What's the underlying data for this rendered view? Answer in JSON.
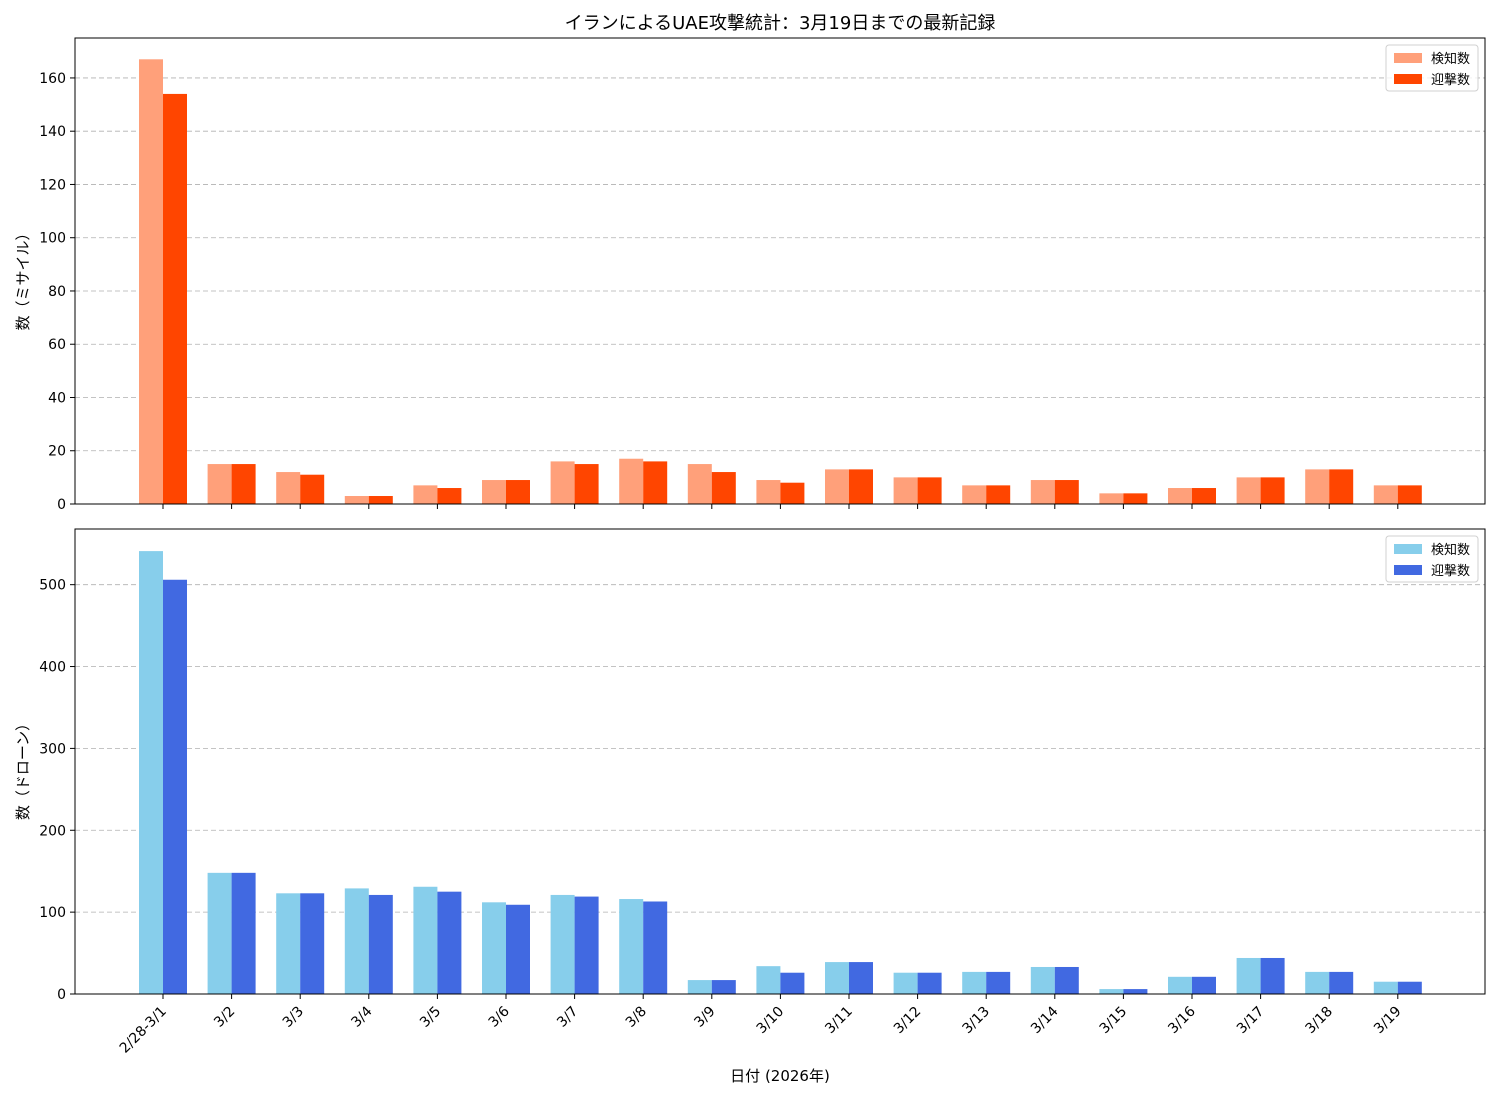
{
  "chart_data": [
    {
      "type": "bar",
      "title": "イランによるUAE攻撃統計：3月19日までの最新記録",
      "xlabel": "",
      "ylabel": "数（ミサイル）",
      "categories": [
        "2/28-3/1",
        "3/2",
        "3/3",
        "3/4",
        "3/5",
        "3/6",
        "3/7",
        "3/8",
        "3/9",
        "3/10",
        "3/11",
        "3/12",
        "3/13",
        "3/14",
        "3/15",
        "3/16",
        "3/17",
        "3/18",
        "3/19"
      ],
      "ylim": [
        0,
        175
      ],
      "yticks": [
        0,
        20,
        40,
        60,
        80,
        100,
        120,
        140,
        160
      ],
      "grid": "y-dashed",
      "legend_position": "top-right",
      "series": [
        {
          "name": "検知数",
          "color": "#FFA07A",
          "values": [
            167,
            15,
            12,
            3,
            7,
            9,
            16,
            17,
            15,
            9,
            13,
            10,
            7,
            9,
            4,
            6,
            10,
            13,
            7
          ]
        },
        {
          "name": "迎撃数",
          "color": "#FF4500",
          "values": [
            154,
            15,
            11,
            3,
            6,
            9,
            15,
            16,
            12,
            8,
            13,
            10,
            7,
            9,
            4,
            6,
            10,
            13,
            7
          ]
        }
      ]
    },
    {
      "type": "bar",
      "title": "",
      "xlabel": "日付 (2026年)",
      "ylabel": "数（ドローン）",
      "categories": [
        "2/28-3/1",
        "3/2",
        "3/3",
        "3/4",
        "3/5",
        "3/6",
        "3/7",
        "3/8",
        "3/9",
        "3/10",
        "3/11",
        "3/12",
        "3/13",
        "3/14",
        "3/15",
        "3/16",
        "3/17",
        "3/18",
        "3/19"
      ],
      "ylim": [
        0,
        568
      ],
      "yticks": [
        0,
        100,
        200,
        300,
        400,
        500
      ],
      "grid": "y-dashed",
      "legend_position": "top-right",
      "series": [
        {
          "name": "検知数",
          "color": "#87CEEB",
          "values": [
            541,
            148,
            123,
            129,
            131,
            112,
            121,
            116,
            17,
            34,
            39,
            26,
            27,
            33,
            6,
            21,
            44,
            27,
            15
          ]
        },
        {
          "name": "迎撃数",
          "color": "#4169E1",
          "values": [
            506,
            148,
            123,
            121,
            125,
            109,
            119,
            113,
            17,
            26,
            39,
            26,
            27,
            33,
            6,
            21,
            44,
            27,
            15
          ]
        }
      ]
    }
  ]
}
